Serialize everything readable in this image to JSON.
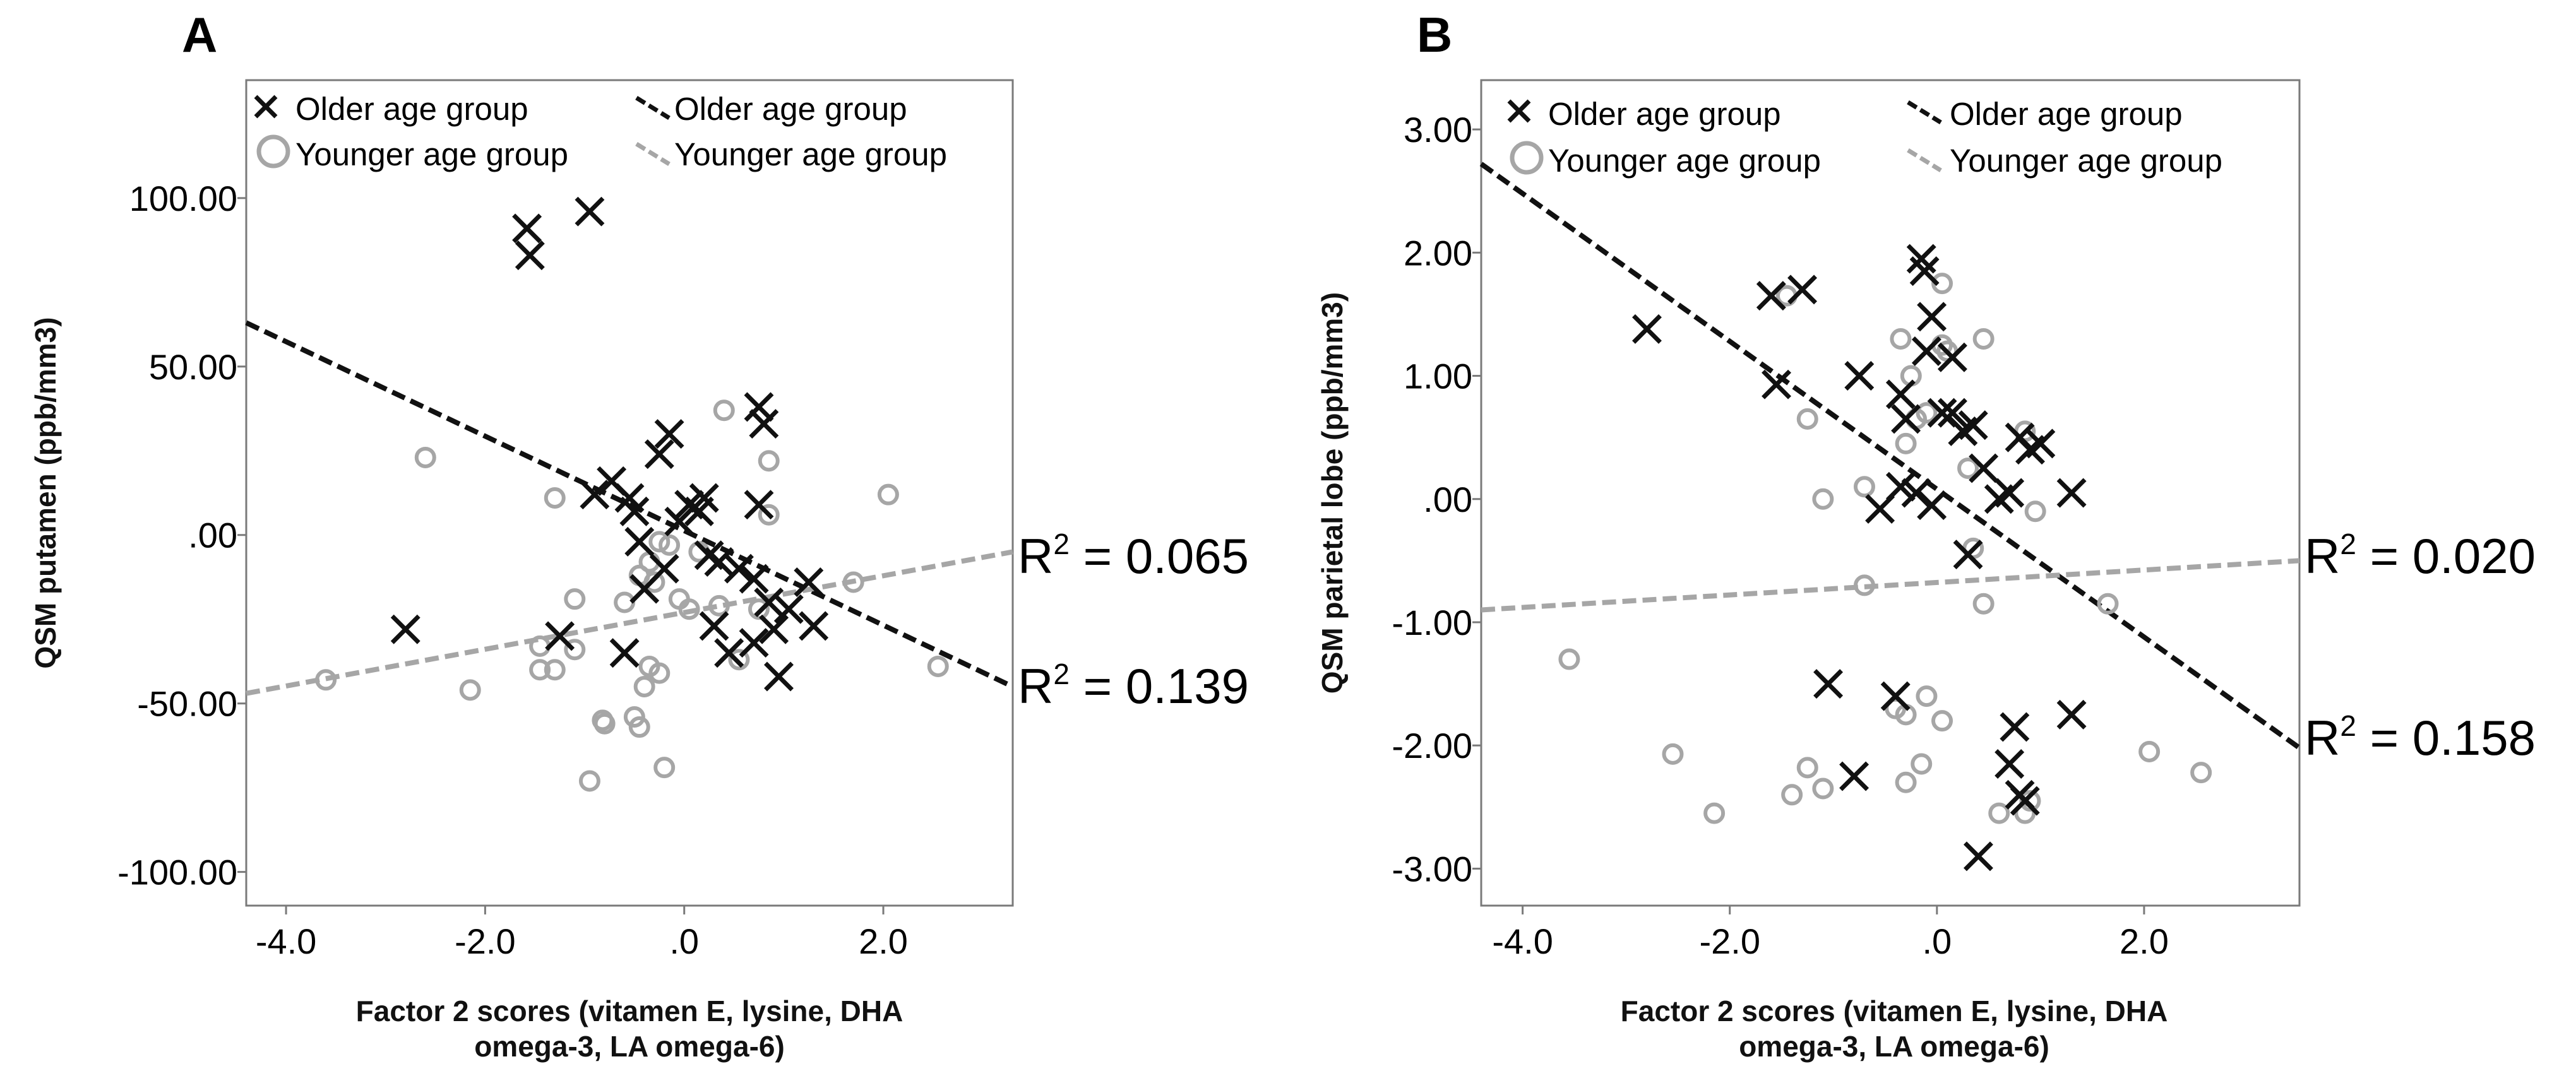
{
  "chart_data": [
    {
      "type": "scatter",
      "panel_label": "A",
      "xlabel_lines": [
        "Factor 2 scores (vitamen E, lysine, DHA",
        "omega-3, LA omega-6)"
      ],
      "ylabel": "QSM putamen (ppb/mm3)",
      "xlim": [
        -4.4,
        3.3
      ],
      "ylim": [
        -110,
        135
      ],
      "xticks": [
        {
          "v": -4.0,
          "label": "-4.0"
        },
        {
          "v": -2.0,
          "label": "-2.0"
        },
        {
          "v": 0.0,
          "label": ".0"
        },
        {
          "v": 2.0,
          "label": "2.0"
        }
      ],
      "yticks": [
        {
          "v": 100,
          "label": "100.00"
        },
        {
          "v": 50,
          "label": "50.00"
        },
        {
          "v": 0,
          "label": ".00"
        },
        {
          "v": -50,
          "label": "-50.00"
        },
        {
          "v": -100,
          "label": "-100.00"
        }
      ],
      "legend": {
        "markers": [
          {
            "series": "older",
            "label": "Older age group"
          },
          {
            "series": "younger",
            "label": "Younger age group"
          }
        ],
        "lines": [
          {
            "series": "older",
            "label": "Older age group"
          },
          {
            "series": "younger",
            "label": "Younger age group"
          }
        ]
      },
      "series": [
        {
          "name": "Older age group",
          "marker": "x",
          "color": "#111111",
          "points": [
            [
              -1.58,
              91
            ],
            [
              -1.55,
              83
            ],
            [
              -0.95,
              96
            ],
            [
              -2.8,
              -28
            ],
            [
              -1.25,
              -30
            ],
            [
              -0.9,
              12
            ],
            [
              -0.73,
              16
            ],
            [
              -0.55,
              11
            ],
            [
              -0.5,
              7
            ],
            [
              -0.45,
              -2
            ],
            [
              -0.4,
              -16
            ],
            [
              -0.25,
              24
            ],
            [
              -0.15,
              30
            ],
            [
              -0.6,
              -35
            ],
            [
              -0.2,
              -10
            ],
            [
              -0.05,
              4
            ],
            [
              0.05,
              9
            ],
            [
              0.15,
              7
            ],
            [
              0.2,
              11
            ],
            [
              0.25,
              -6
            ],
            [
              0.3,
              -27
            ],
            [
              0.35,
              -8
            ],
            [
              0.45,
              -35
            ],
            [
              0.55,
              -10
            ],
            [
              0.7,
              -13
            ],
            [
              0.75,
              38
            ],
            [
              0.8,
              33
            ],
            [
              0.75,
              9
            ],
            [
              0.85,
              -20
            ],
            [
              0.95,
              -42
            ],
            [
              0.7,
              -32
            ],
            [
              1.05,
              -22
            ],
            [
              1.25,
              -14
            ],
            [
              1.3,
              -27
            ],
            [
              0.9,
              -28
            ]
          ]
        },
        {
          "name": "Younger age group",
          "marker": "circle",
          "color": "#a6a6a6",
          "points": [
            [
              -3.6,
              -43
            ],
            [
              -2.6,
              23
            ],
            [
              -2.15,
              -46
            ],
            [
              -1.3,
              11
            ],
            [
              -1.1,
              -19
            ],
            [
              -1.1,
              -34
            ],
            [
              -1.45,
              -33
            ],
            [
              -1.45,
              -40
            ],
            [
              -1.3,
              -40
            ],
            [
              -0.8,
              -56
            ],
            [
              -0.82,
              -55
            ],
            [
              -0.5,
              -54
            ],
            [
              -0.45,
              -57
            ],
            [
              -0.4,
              -45
            ],
            [
              -0.35,
              -39
            ],
            [
              -0.25,
              -41
            ],
            [
              -0.2,
              -69
            ],
            [
              -0.95,
              -73
            ],
            [
              -0.45,
              -12
            ],
            [
              -0.35,
              -8
            ],
            [
              -0.3,
              -14
            ],
            [
              -0.25,
              -2
            ],
            [
              -0.15,
              -3
            ],
            [
              -0.05,
              -19
            ],
            [
              0.05,
              -22
            ],
            [
              0.35,
              -21
            ],
            [
              0.4,
              37
            ],
            [
              0.55,
              -37
            ],
            [
              0.75,
              -22
            ],
            [
              0.85,
              22
            ],
            [
              0.85,
              6
            ],
            [
              1.7,
              -14
            ],
            [
              2.05,
              12
            ],
            [
              2.55,
              -39
            ],
            [
              0.15,
              -5
            ],
            [
              -0.6,
              -20
            ]
          ]
        }
      ],
      "fit_lines": [
        {
          "series": "Older age group",
          "x": [
            -4.4,
            3.3
          ],
          "y": [
            63,
            -45
          ],
          "color": "#111111",
          "r2_label": "R",
          "r2_sup": "2",
          "r2_value": " = 0.139"
        },
        {
          "series": "Younger age group",
          "x": [
            -4.4,
            3.3
          ],
          "y": [
            -47,
            -5
          ],
          "color": "#a6a6a6",
          "r2_label": "R",
          "r2_sup": "2",
          "r2_value": " = 0.065"
        }
      ]
    },
    {
      "type": "scatter",
      "panel_label": "B",
      "xlabel_lines": [
        "Factor 2 scores (vitamen E, lysine, DHA",
        "omega-3, LA omega-6)"
      ],
      "ylabel": "QSM parietal lobe (ppb/mm3)",
      "xlim": [
        -4.4,
        3.5
      ],
      "ylim": [
        -3.3,
        3.4
      ],
      "xticks": [
        {
          "v": -4.0,
          "label": "-4.0"
        },
        {
          "v": -2.0,
          "label": "-2.0"
        },
        {
          "v": 0.0,
          "label": ".0"
        },
        {
          "v": 2.0,
          "label": "2.0"
        }
      ],
      "yticks": [
        {
          "v": 3,
          "label": "3.00"
        },
        {
          "v": 2,
          "label": "2.00"
        },
        {
          "v": 1,
          "label": "1.00"
        },
        {
          "v": 0,
          "label": ".00"
        },
        {
          "v": -1,
          "label": "-1.00"
        },
        {
          "v": -2,
          "label": "-2.00"
        },
        {
          "v": -3,
          "label": "-3.00"
        }
      ],
      "legend": {
        "markers": [
          {
            "series": "older",
            "label": "Older age group"
          },
          {
            "series": "younger",
            "label": "Younger age group"
          }
        ],
        "lines": [
          {
            "series": "older",
            "label": "Older age group"
          },
          {
            "series": "younger",
            "label": "Younger age group"
          }
        ]
      },
      "series": [
        {
          "name": "Older age group",
          "marker": "x",
          "color": "#111111",
          "points": [
            [
              -2.8,
              1.38
            ],
            [
              -1.6,
              1.65
            ],
            [
              -1.3,
              1.7
            ],
            [
              -1.55,
              0.93
            ],
            [
              -0.75,
              1.0
            ],
            [
              -0.35,
              0.85
            ],
            [
              -0.3,
              0.65
            ],
            [
              -0.55,
              -0.08
            ],
            [
              -0.35,
              0.1
            ],
            [
              -0.2,
              0.05
            ],
            [
              -0.15,
              1.95
            ],
            [
              -0.12,
              1.85
            ],
            [
              -0.05,
              1.48
            ],
            [
              -0.1,
              1.2
            ],
            [
              0.05,
              0.7
            ],
            [
              0.15,
              1.15
            ],
            [
              0.15,
              0.7
            ],
            [
              0.25,
              0.55
            ],
            [
              -0.05,
              -0.05
            ],
            [
              0.35,
              0.6
            ],
            [
              0.45,
              0.25
            ],
            [
              0.6,
              0.0
            ],
            [
              0.7,
              0.05
            ],
            [
              0.8,
              0.5
            ],
            [
              0.9,
              0.4
            ],
            [
              1.0,
              0.45
            ],
            [
              1.3,
              0.05
            ],
            [
              0.3,
              -0.45
            ],
            [
              -1.05,
              -1.5
            ],
            [
              -0.4,
              -1.6
            ],
            [
              -0.8,
              -2.25
            ],
            [
              0.7,
              -2.15
            ],
            [
              0.75,
              -1.85
            ],
            [
              0.8,
              -2.4
            ],
            [
              0.85,
              -2.45
            ],
            [
              0.4,
              -2.9
            ],
            [
              1.3,
              -1.75
            ]
          ]
        },
        {
          "name": "Younger age group",
          "marker": "circle",
          "color": "#a6a6a6",
          "points": [
            [
              -3.55,
              -1.3
            ],
            [
              -2.55,
              -2.07
            ],
            [
              -2.15,
              -2.55
            ],
            [
              -1.4,
              -2.4
            ],
            [
              -1.25,
              -2.18
            ],
            [
              -1.1,
              -2.35
            ],
            [
              -1.25,
              0.65
            ],
            [
              -1.1,
              0.0
            ],
            [
              -0.7,
              0.1
            ],
            [
              -0.7,
              -0.7
            ],
            [
              -0.35,
              1.3
            ],
            [
              -0.3,
              0.45
            ],
            [
              -0.25,
              1.0
            ],
            [
              -0.2,
              0.65
            ],
            [
              -0.1,
              0.7
            ],
            [
              0.05,
              1.75
            ],
            [
              0.05,
              1.25
            ],
            [
              0.1,
              1.2
            ],
            [
              0.3,
              0.25
            ],
            [
              0.45,
              1.3
            ],
            [
              0.45,
              -0.85
            ],
            [
              0.35,
              -0.4
            ],
            [
              -0.4,
              -1.7
            ],
            [
              -0.3,
              -1.75
            ],
            [
              -0.1,
              -1.6
            ],
            [
              0.05,
              -1.8
            ],
            [
              -0.15,
              -2.15
            ],
            [
              -0.3,
              -2.3
            ],
            [
              0.6,
              -2.55
            ],
            [
              0.85,
              -2.55
            ],
            [
              0.9,
              -2.45
            ],
            [
              0.95,
              -0.1
            ],
            [
              1.65,
              -0.85
            ],
            [
              2.05,
              -2.05
            ],
            [
              2.55,
              -2.22
            ],
            [
              -1.45,
              1.65
            ],
            [
              0.85,
              0.55
            ]
          ]
        }
      ],
      "fit_lines": [
        {
          "series": "Older age group",
          "x": [
            -4.4,
            3.5
          ],
          "y": [
            2.72,
            -2.02
          ],
          "color": "#111111",
          "r2_label": "R",
          "r2_sup": "2",
          "r2_value": " = 0.158"
        },
        {
          "series": "Younger age group",
          "x": [
            -4.4,
            3.5
          ],
          "y": [
            -0.9,
            -0.5
          ],
          "color": "#a6a6a6",
          "r2_label": "R",
          "r2_sup": "2",
          "r2_value": " = 0.020"
        }
      ]
    }
  ]
}
